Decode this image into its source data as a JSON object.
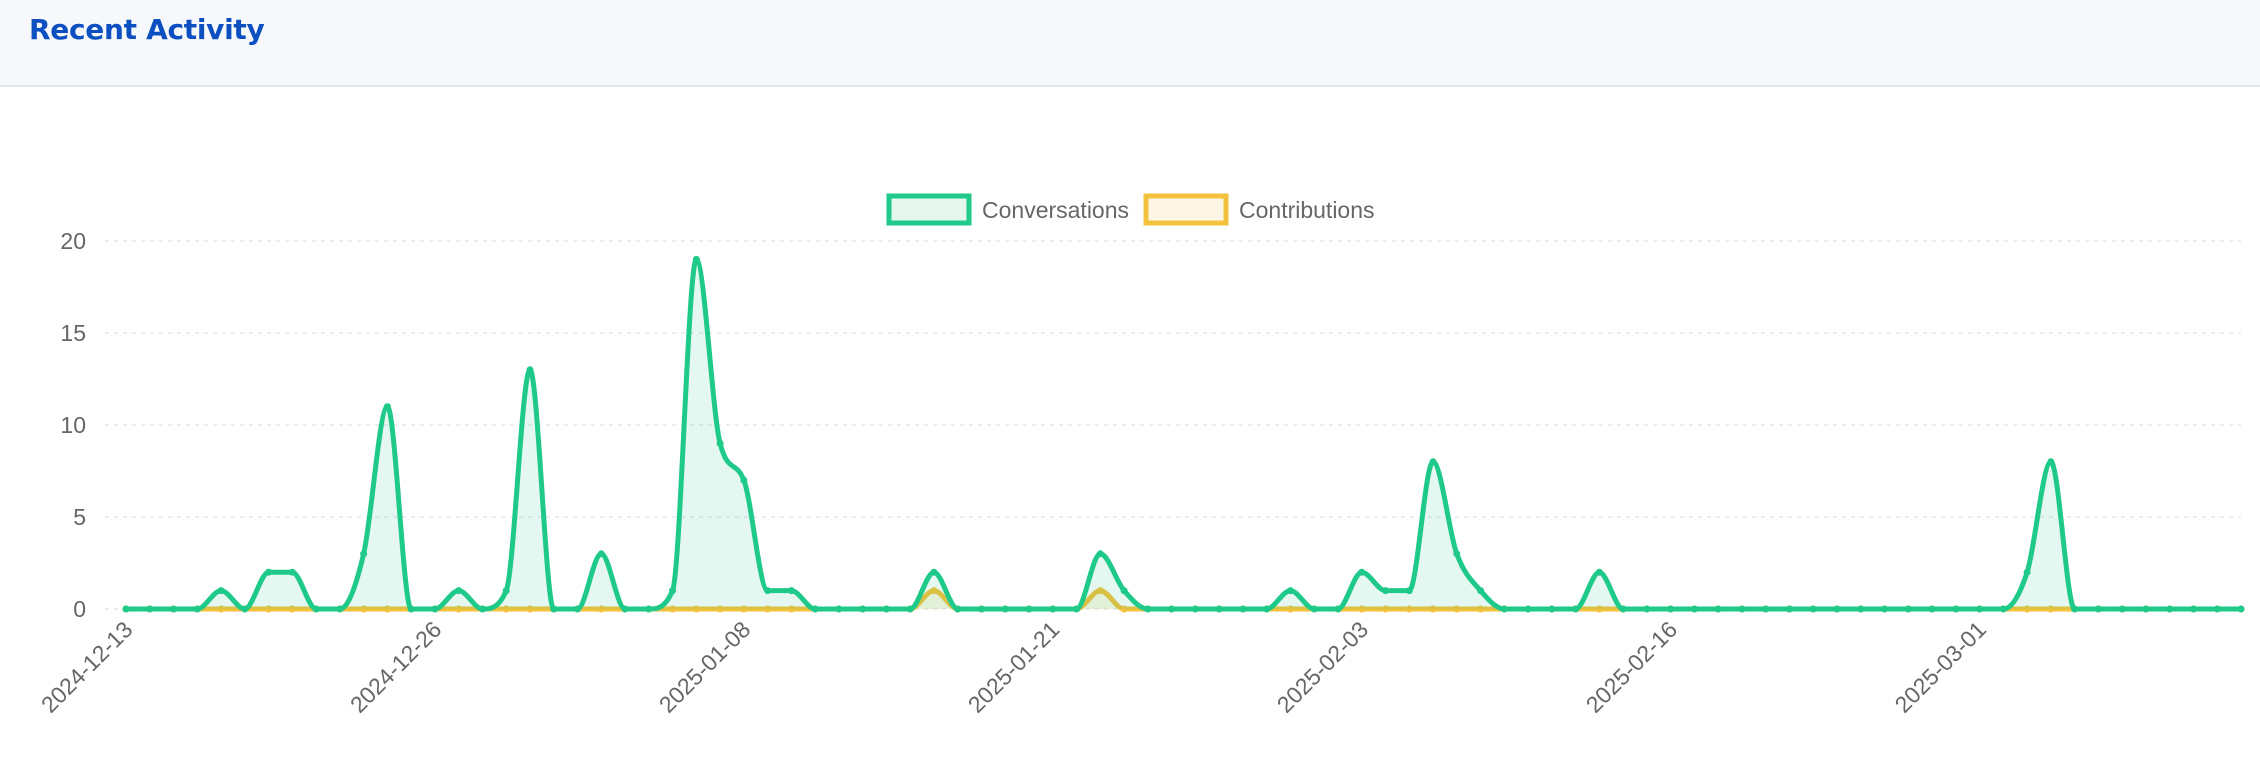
{
  "header": {
    "title": "Recent Activity"
  },
  "colors": {
    "conversations": "#1fc98a",
    "conversations_fill": "rgba(31,201,138,0.12)",
    "contributions": "#f3c13c",
    "contributions_fill": "rgba(243,193,60,0.15)",
    "header_title": "#0c4fc0",
    "header_bg": "#f7f8fc"
  },
  "chart_data": {
    "type": "area",
    "title": "",
    "xlabel": "",
    "ylabel": "",
    "ylim": [
      0,
      20
    ],
    "yticks": [
      "0",
      "5",
      "10",
      "15",
      "20"
    ],
    "grid": true,
    "legend_position": "top",
    "x_start": "2024-12-13",
    "x_end": "2025-03-12",
    "x_step": "1 day",
    "xtick_labels": [
      "2024-12-13",
      "2024-12-26",
      "2025-01-08",
      "2025-01-21",
      "2025-02-03",
      "2025-02-16",
      "2025-03-01"
    ],
    "series": [
      {
        "name": "Conversations",
        "color": "#1fc98a",
        "values": [
          0,
          0,
          0,
          0,
          1,
          0,
          2,
          2,
          0,
          0,
          3,
          11,
          0,
          0,
          1,
          0,
          1,
          13,
          0,
          0,
          3,
          0,
          0,
          1,
          19,
          9,
          7,
          1,
          1,
          0,
          0,
          0,
          0,
          0,
          2,
          0,
          0,
          0,
          0,
          0,
          0,
          3,
          1,
          0,
          0,
          0,
          0,
          0,
          0,
          1,
          0,
          0,
          2,
          1,
          1,
          8,
          3,
          1,
          0,
          0,
          0,
          0,
          2,
          0,
          0,
          0,
          0,
          0,
          0,
          0,
          0,
          0,
          0,
          0,
          0,
          0,
          0,
          0,
          0,
          0,
          2,
          8,
          0,
          0,
          0,
          0,
          0,
          0,
          0,
          0
        ]
      },
      {
        "name": "Contributions",
        "color": "#f3c13c",
        "values": [
          0,
          0,
          0,
          0,
          0,
          0,
          0,
          0,
          0,
          0,
          0,
          0,
          0,
          0,
          0,
          0,
          0,
          0,
          0,
          0,
          0,
          0,
          0,
          0,
          0,
          0,
          0,
          0,
          0,
          0,
          0,
          0,
          0,
          0,
          1,
          0,
          0,
          0,
          0,
          0,
          0,
          1,
          0,
          0,
          0,
          0,
          0,
          0,
          0,
          0,
          0,
          0,
          0,
          0,
          0,
          0,
          0,
          0,
          0,
          0,
          0,
          0,
          0,
          0,
          0,
          0,
          0,
          0,
          0,
          0,
          0,
          0,
          0,
          0,
          0,
          0,
          0,
          0,
          0,
          0,
          0,
          0,
          0,
          0,
          0,
          0,
          0,
          0,
          0,
          0
        ]
      }
    ]
  }
}
